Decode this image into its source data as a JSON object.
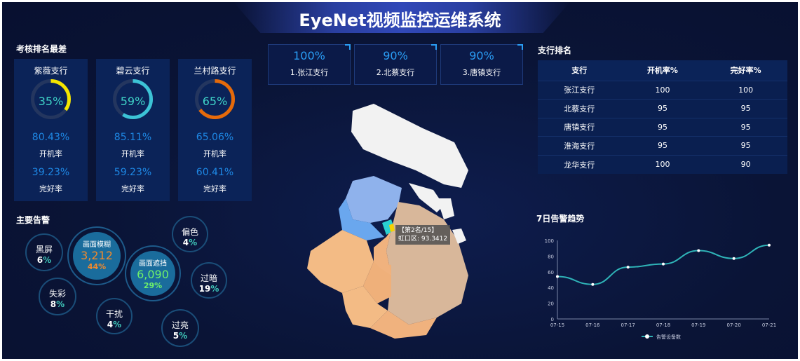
{
  "title": "EyeNet视频监控运维系统",
  "worst": {
    "title": "考核排名最差",
    "cards": [
      {
        "name": "紫薇支行",
        "percent": "35%",
        "ratio": 0.35,
        "color": "#f5e600",
        "boot": "80.43%",
        "boot_label": "开机率",
        "good": "39.23%",
        "good_label": "完好率"
      },
      {
        "name": "碧云支行",
        "percent": "59%",
        "ratio": 0.59,
        "color": "#3cc3d6",
        "boot": "85.11%",
        "boot_label": "开机率",
        "good": "59.23%",
        "good_label": "完好率"
      },
      {
        "name": "兰村路支行",
        "percent": "65%",
        "ratio": 0.65,
        "color": "#e66a0a",
        "boot": "65.06%",
        "boot_label": "开机率",
        "good": "60.41%",
        "good_label": "完好率"
      }
    ]
  },
  "top3": [
    {
      "pct": "100%",
      "name": "1.张江支行"
    },
    {
      "pct": "90%",
      "name": "2.北蔡支行"
    },
    {
      "pct": "90%",
      "name": "3.唐镇支行"
    }
  ],
  "ranking": {
    "title": "支行排名",
    "headers": [
      "支行",
      "开机率%",
      "完好率%"
    ],
    "rows": [
      [
        "张江支行",
        "100",
        "100"
      ],
      [
        "北蔡支行",
        "95",
        "95"
      ],
      [
        "唐镇支行",
        "95",
        "95"
      ],
      [
        "淮海支行",
        "95",
        "95"
      ],
      [
        "龙华支行",
        "100",
        "90"
      ]
    ]
  },
  "alerts": {
    "title": "主要告警",
    "items": [
      {
        "name": "黑屏",
        "num": "6",
        "pct": "%"
      },
      {
        "name": "失彩",
        "num": "8",
        "pct": "%"
      },
      {
        "name": "干扰",
        "num": "4",
        "pct": "%"
      },
      {
        "name": "偏色",
        "num": "4",
        "pct": "%"
      },
      {
        "name": "过暗",
        "num": "19",
        "pct": "%"
      },
      {
        "name": "过亮",
        "num": "5",
        "pct": "%"
      }
    ],
    "big": [
      {
        "name": "画面模糊",
        "value": "3,212",
        "pct": "44%",
        "color": "#f28a2c"
      },
      {
        "name": "画面遮挡",
        "value": "6,090",
        "pct": "29%",
        "color": "#6ef06a"
      }
    ]
  },
  "map": {
    "tooltip_rank": "【第2名/15】",
    "tooltip_value": "虹口区: 93.3412"
  },
  "chart_data": {
    "type": "line",
    "title": "7日告警趋势",
    "categories": [
      "07-15",
      "07-16",
      "07-17",
      "07-18",
      "07-19",
      "07-20",
      "07-21"
    ],
    "series": [
      {
        "name": "告警设备数",
        "values": [
          54,
          44,
          66,
          70,
          87,
          77,
          94
        ]
      }
    ],
    "ylim": [
      0,
      100
    ],
    "yticks": [
      0,
      20,
      40,
      60,
      80,
      100
    ],
    "color": "#2fb4b8",
    "legend": "bottom"
  }
}
